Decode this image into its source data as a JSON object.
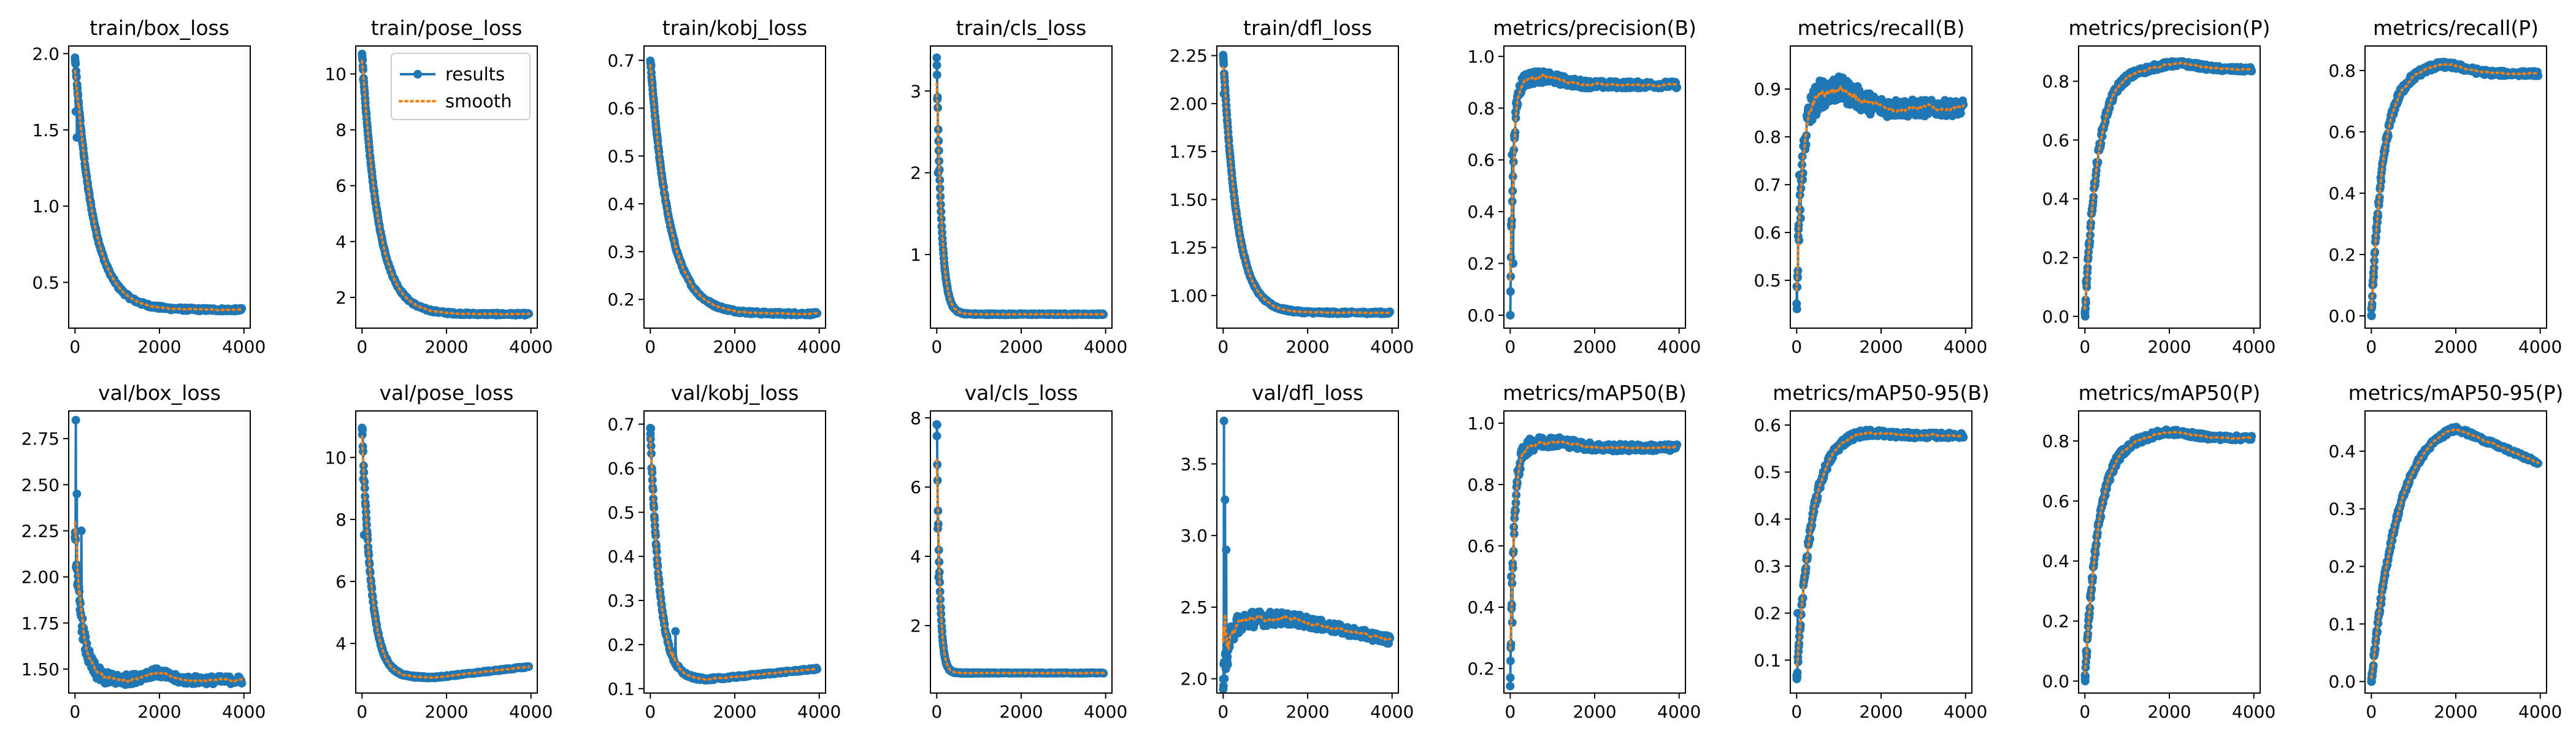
{
  "colors": {
    "results": "#1f77b4",
    "smooth": "#ff7f0e"
  },
  "legend": {
    "results": "results",
    "smooth": "smooth",
    "placement": "top-right",
    "panel": "train/pose_loss"
  },
  "chart_data": [
    {
      "type": "line",
      "title": "train/box_loss",
      "xlabel": "",
      "ylabel": "",
      "xlim": [
        -150,
        4150
      ],
      "ylim": [
        0.2,
        2.05
      ],
      "xticks": [
        0,
        2000,
        4000
      ],
      "yticks": [
        0.5,
        1.0,
        1.5,
        2.0
      ],
      "ytick_labels": [
        "0.5",
        "1.0",
        "1.5",
        "2.0"
      ],
      "shape": "decay",
      "y_start": 1.97,
      "y_end": 0.32,
      "tau": 430,
      "noise": 0.01,
      "spikes": [
        [
          20,
          1.62
        ],
        [
          40,
          1.45
        ]
      ]
    },
    {
      "type": "line",
      "title": "train/pose_loss",
      "xlabel": "",
      "ylabel": "",
      "xlim": [
        -150,
        4150
      ],
      "ylim": [
        0.9,
        11.0
      ],
      "xticks": [
        0,
        2000,
        4000
      ],
      "yticks": [
        2,
        4,
        6,
        8,
        10
      ],
      "ytick_labels": [
        "2",
        "4",
        "6",
        "8",
        "10"
      ],
      "shape": "decay",
      "y_start": 10.7,
      "y_end": 1.4,
      "tau": 380,
      "noise": 0.04,
      "spikes": [
        [
          15,
          10.5
        ],
        [
          30,
          9.8
        ]
      ]
    },
    {
      "type": "line",
      "title": "train/kobj_loss",
      "xlabel": "",
      "ylabel": "",
      "xlim": [
        -150,
        4150
      ],
      "ylim": [
        0.14,
        0.73
      ],
      "xticks": [
        0,
        2000,
        4000
      ],
      "yticks": [
        0.2,
        0.3,
        0.4,
        0.5,
        0.6,
        0.7
      ],
      "ytick_labels": [
        "0.2",
        "0.3",
        "0.4",
        "0.5",
        "0.6",
        "0.7"
      ],
      "shape": "decay",
      "y_start": 0.7,
      "y_end": 0.17,
      "tau": 450,
      "noise": 0.003,
      "spikes": [
        [
          20,
          0.69
        ]
      ]
    },
    {
      "type": "line",
      "title": "train/cls_loss",
      "xlabel": "",
      "ylabel": "",
      "xlim": [
        -150,
        4150
      ],
      "ylim": [
        0.1,
        3.55
      ],
      "xticks": [
        0,
        2000,
        4000
      ],
      "yticks": [
        1,
        2,
        3
      ],
      "ytick_labels": [
        "1",
        "2",
        "3"
      ],
      "shape": "decay",
      "y_start": 3.4,
      "y_end": 0.27,
      "tau": 110,
      "noise": 0.008,
      "spikes": [
        [
          15,
          2.9
        ],
        [
          30,
          2.0
        ]
      ]
    },
    {
      "type": "line",
      "title": "train/dfl_loss",
      "xlabel": "",
      "ylabel": "",
      "xlim": [
        -150,
        4150
      ],
      "ylim": [
        0.83,
        2.3
      ],
      "xticks": [
        0,
        2000,
        4000
      ],
      "yticks": [
        1.0,
        1.25,
        1.5,
        1.75,
        2.0,
        2.25
      ],
      "ytick_labels": [
        "1.00",
        "1.25",
        "1.50",
        "1.75",
        "2.00",
        "2.25"
      ],
      "shape": "decay",
      "y_start": 2.25,
      "y_end": 0.91,
      "tau": 330,
      "noise": 0.006,
      "spikes": [
        [
          20,
          2.05
        ]
      ]
    },
    {
      "type": "line",
      "title": "metrics/precision(B)",
      "xlabel": "",
      "ylabel": "",
      "xlim": [
        -150,
        4150
      ],
      "ylim": [
        -0.05,
        1.04
      ],
      "xticks": [
        0,
        2000,
        4000
      ],
      "yticks": [
        0.0,
        0.2,
        0.4,
        0.6,
        0.8,
        1.0
      ],
      "ytick_labels": [
        "0.0",
        "0.2",
        "0.4",
        "0.6",
        "0.8",
        "1.0"
      ],
      "shape": "rise",
      "y_start": 0.0,
      "y_end": 0.89,
      "tau": 70,
      "peak": 0.03,
      "peak_at": 700,
      "noise": 0.035,
      "noise_decay": 900,
      "spikes": [
        [
          5,
          0.0
        ],
        [
          25,
          0.35
        ],
        [
          45,
          0.62
        ],
        [
          70,
          0.2
        ]
      ]
    },
    {
      "type": "line",
      "title": "metrics/recall(B)",
      "xlabel": "",
      "ylabel": "",
      "xlim": [
        -150,
        4150
      ],
      "ylim": [
        0.4,
        0.99
      ],
      "xticks": [
        0,
        2000,
        4000
      ],
      "yticks": [
        0.5,
        0.6,
        0.7,
        0.8,
        0.9
      ],
      "ytick_labels": [
        "0.5",
        "0.6",
        "0.7",
        "0.8",
        "0.9"
      ],
      "shape": "rise",
      "y_start": 0.44,
      "y_end": 0.86,
      "tau": 120,
      "peak": 0.04,
      "peak_at": 900,
      "noise": 0.04,
      "noise_decay": 1500,
      "spikes": [
        [
          10,
          0.44
        ],
        [
          30,
          0.52
        ],
        [
          60,
          0.72
        ],
        [
          90,
          0.63
        ]
      ]
    },
    {
      "type": "line",
      "title": "metrics/precision(P)",
      "xlabel": "",
      "ylabel": "",
      "xlim": [
        -150,
        4150
      ],
      "ylim": [
        -0.04,
        0.92
      ],
      "xticks": [
        0,
        2000,
        4000
      ],
      "yticks": [
        0.0,
        0.2,
        0.4,
        0.6,
        0.8
      ],
      "ytick_labels": [
        "0.0",
        "0.2",
        "0.4",
        "0.6",
        "0.8"
      ],
      "shape": "rise",
      "y_start": 0.0,
      "y_end": 0.84,
      "tau": 300,
      "peak": 0.02,
      "peak_at": 2200,
      "noise": 0.02,
      "noise_decay": 1200,
      "spikes": [
        [
          10,
          0.0
        ],
        [
          30,
          0.12
        ]
      ]
    },
    {
      "type": "line",
      "title": "metrics/recall(P)",
      "xlabel": "",
      "ylabel": "",
      "xlim": [
        -150,
        4150
      ],
      "ylim": [
        -0.04,
        0.88
      ],
      "xticks": [
        0,
        2000,
        4000
      ],
      "yticks": [
        0.0,
        0.2,
        0.4,
        0.6,
        0.8
      ],
      "ytick_labels": [
        "0.0",
        "0.2",
        "0.4",
        "0.6",
        "0.8"
      ],
      "shape": "rise",
      "y_start": 0.0,
      "y_end": 0.79,
      "tau": 280,
      "peak": 0.03,
      "peak_at": 1700,
      "noise": 0.02,
      "noise_decay": 1200,
      "spikes": [
        [
          10,
          0.0
        ],
        [
          30,
          0.1
        ]
      ]
    },
    {
      "type": "line",
      "title": "val/box_loss",
      "xlabel": "",
      "ylabel": "",
      "xlim": [
        -150,
        4150
      ],
      "ylim": [
        1.37,
        2.9
      ],
      "xticks": [
        0,
        2000,
        4000
      ],
      "yticks": [
        1.5,
        1.75,
        2.0,
        2.25,
        2.5,
        2.75
      ],
      "ytick_labels": [
        "1.50",
        "1.75",
        "2.00",
        "2.25",
        "2.50",
        "2.75"
      ],
      "shape": "decay",
      "y_start": 2.2,
      "y_end": 1.44,
      "tau": 180,
      "bump": 0.04,
      "bump_at": 1900,
      "noise": 0.06,
      "noise_decay": 700,
      "spikes": [
        [
          20,
          2.85
        ],
        [
          40,
          2.45
        ],
        [
          80,
          2.0
        ],
        [
          150,
          2.25
        ]
      ]
    },
    {
      "type": "line",
      "title": "val/pose_loss",
      "xlabel": "",
      "ylabel": "",
      "xlim": [
        -150,
        4150
      ],
      "ylim": [
        2.4,
        11.5
      ],
      "xticks": [
        0,
        2000,
        4000
      ],
      "yticks": [
        4,
        6,
        8,
        10
      ],
      "ytick_labels": [
        "4",
        "6",
        "8",
        "10"
      ],
      "shape": "vcurve",
      "y_start": 11.0,
      "y_min": 2.9,
      "min_at": 1700,
      "y_end": 3.25,
      "tau": 220,
      "noise": 0.06,
      "noise_decay": 800,
      "spikes": [
        [
          15,
          10.9
        ],
        [
          30,
          9.3
        ],
        [
          50,
          7.5
        ]
      ]
    },
    {
      "type": "line",
      "title": "val/kobj_loss",
      "xlabel": "",
      "ylabel": "",
      "xlim": [
        -150,
        4150
      ],
      "ylim": [
        0.09,
        0.73
      ],
      "xticks": [
        0,
        2000,
        4000
      ],
      "yticks": [
        0.1,
        0.2,
        0.3,
        0.4,
        0.5,
        0.6,
        0.7
      ],
      "ytick_labels": [
        "0.1",
        "0.2",
        "0.3",
        "0.4",
        "0.5",
        "0.6",
        "0.7"
      ],
      "shape": "vcurve",
      "y_start": 0.69,
      "y_min": 0.12,
      "min_at": 1300,
      "y_end": 0.145,
      "tau": 220,
      "noise": 0.006,
      "noise_decay": 800,
      "spikes": [
        [
          15,
          0.69
        ],
        [
          30,
          0.6
        ],
        [
          600,
          0.23
        ]
      ]
    },
    {
      "type": "line",
      "title": "val/cls_loss",
      "xlabel": "",
      "ylabel": "",
      "xlim": [
        -150,
        4150
      ],
      "ylim": [
        0.05,
        8.2
      ],
      "xticks": [
        0,
        2000,
        4000
      ],
      "yticks": [
        2,
        4,
        6,
        8
      ],
      "ytick_labels": [
        "2",
        "4",
        "6",
        "8"
      ],
      "shape": "decay",
      "y_start": 7.8,
      "y_end": 0.63,
      "tau": 70,
      "noise": 0.03,
      "noise_decay": 600,
      "spikes": [
        [
          10,
          7.8
        ],
        [
          25,
          4.8
        ],
        [
          45,
          3.4
        ]
      ]
    },
    {
      "type": "line",
      "title": "val/dfl_loss",
      "xlabel": "",
      "ylabel": "",
      "xlim": [
        -150,
        4150
      ],
      "ylim": [
        1.9,
        3.87
      ],
      "xticks": [
        0,
        2000,
        4000
      ],
      "yticks": [
        2.0,
        2.5,
        3.0,
        3.5
      ],
      "ytick_labels": [
        "2.0",
        "2.5",
        "3.0",
        "3.5"
      ],
      "shape": "peak",
      "y_start": 2.0,
      "y_peak": 2.42,
      "peak_at": 1600,
      "y_end": 2.27,
      "tau": 150,
      "noise": 0.08,
      "noise_decay": 1200,
      "spikes": [
        [
          20,
          3.8
        ],
        [
          40,
          3.25
        ],
        [
          70,
          2.9
        ],
        [
          110,
          2.1
        ]
      ]
    },
    {
      "type": "line",
      "title": "metrics/mAP50(B)",
      "xlabel": "",
      "ylabel": "",
      "xlim": [
        -150,
        4150
      ],
      "ylim": [
        0.12,
        1.04
      ],
      "xticks": [
        0,
        2000,
        4000
      ],
      "yticks": [
        0.2,
        0.4,
        0.6,
        0.8,
        1.0
      ],
      "ytick_labels": [
        "0.2",
        "0.4",
        "0.6",
        "0.8",
        "1.0"
      ],
      "shape": "rise",
      "y_start": 0.17,
      "y_end": 0.92,
      "tau": 90,
      "peak": 0.02,
      "peak_at": 1000,
      "noise": 0.03,
      "noise_decay": 900,
      "spikes": [
        [
          5,
          0.17
        ],
        [
          25,
          0.5
        ],
        [
          50,
          0.35
        ]
      ]
    },
    {
      "type": "line",
      "title": "metrics/mAP50-95(B)",
      "xlabel": "",
      "ylabel": "",
      "xlim": [
        -150,
        4150
      ],
      "ylim": [
        0.03,
        0.63
      ],
      "xticks": [
        0,
        2000,
        4000
      ],
      "yticks": [
        0.1,
        0.2,
        0.3,
        0.4,
        0.5,
        0.6
      ],
      "ytick_labels": [
        "0.1",
        "0.2",
        "0.3",
        "0.4",
        "0.5",
        "0.6"
      ],
      "shape": "rise",
      "y_start": 0.06,
      "y_end": 0.578,
      "tau": 350,
      "peak": 0.01,
      "peak_at": 1500,
      "noise": 0.015,
      "noise_decay": 1000,
      "spikes": [
        [
          5,
          0.06
        ],
        [
          25,
          0.2
        ]
      ]
    },
    {
      "type": "line",
      "title": "metrics/mAP50(P)",
      "xlabel": "",
      "ylabel": "",
      "xlim": [
        -150,
        4150
      ],
      "ylim": [
        -0.04,
        0.9
      ],
      "xticks": [
        0,
        2000,
        4000
      ],
      "yticks": [
        0.0,
        0.2,
        0.4,
        0.6,
        0.8
      ],
      "ytick_labels": [
        "0.0",
        "0.2",
        "0.4",
        "0.6",
        "0.8"
      ],
      "shape": "rise",
      "y_start": 0.0,
      "y_end": 0.81,
      "tau": 320,
      "peak": 0.02,
      "peak_at": 2000,
      "noise": 0.02,
      "noise_decay": 1200,
      "spikes": [
        [
          10,
          0.0
        ],
        [
          30,
          0.1
        ]
      ]
    },
    {
      "type": "line",
      "title": "metrics/mAP50-95(P)",
      "xlabel": "",
      "ylabel": "",
      "xlim": [
        -150,
        4150
      ],
      "ylim": [
        -0.02,
        0.47
      ],
      "xticks": [
        0,
        2000,
        4000
      ],
      "yticks": [
        0.0,
        0.1,
        0.2,
        0.3,
        0.4
      ],
      "ytick_labels": [
        "0.0",
        "0.1",
        "0.2",
        "0.3",
        "0.4"
      ],
      "shape": "hump",
      "y_start": 0.0,
      "y_peak": 0.44,
      "peak_at": 2000,
      "y_end": 0.38,
      "tau": 600,
      "noise": 0.008,
      "noise_decay": 1500,
      "spikes": [
        [
          10,
          0.0
        ]
      ]
    }
  ]
}
